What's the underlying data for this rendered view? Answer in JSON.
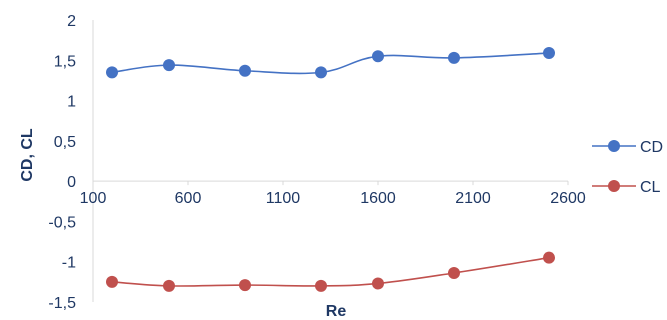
{
  "chart_data": {
    "type": "line",
    "xlabel": "Re",
    "ylabel": "CD, CL",
    "xlim": [
      100,
      2600
    ],
    "ylim": [
      -1.5,
      2
    ],
    "x_ticks": [
      "100",
      "600",
      "1100",
      "1600",
      "2100",
      "2600"
    ],
    "y_ticks": [
      "-1,5",
      "-1",
      "-0,5",
      "0",
      "0,5",
      "1",
      "1,5",
      "2"
    ],
    "grid": false,
    "legend_position": "right",
    "series": [
      {
        "name": "CD",
        "color": "#4472c4",
        "x": [
          200,
          500,
          900,
          1300,
          1600,
          2000,
          2500
        ],
        "y": [
          1.35,
          1.44,
          1.37,
          1.35,
          1.55,
          1.53,
          1.59
        ]
      },
      {
        "name": "CL",
        "color": "#c0504d",
        "x": [
          200,
          500,
          900,
          1300,
          1600,
          2000,
          2500
        ],
        "y": [
          -1.25,
          -1.3,
          -1.29,
          -1.3,
          -1.27,
          -1.14,
          -0.95
        ]
      }
    ]
  }
}
